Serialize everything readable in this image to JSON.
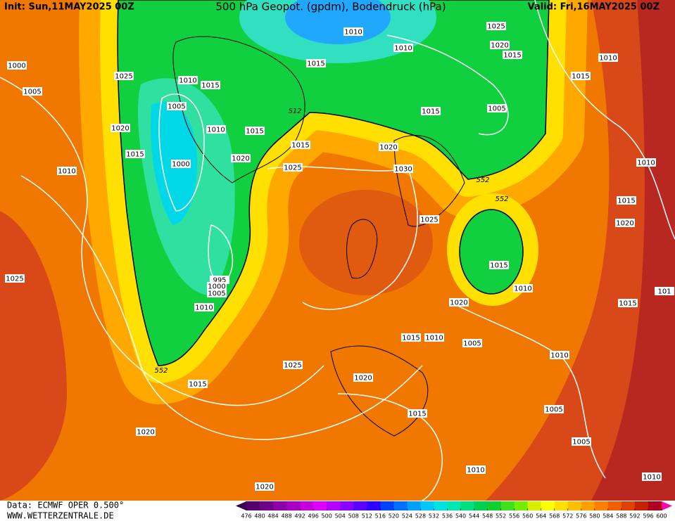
{
  "header": {
    "init": "Init: Sun,11MAY2025 00Z",
    "title": "500 hPa Geopot. (gpdm), Bodendruck (hPa)",
    "valid": "Valid: Fri,16MAY2025 00Z"
  },
  "map": {
    "isobar_labels": [
      "1010",
      "1025",
      "1020",
      "1015",
      "1010",
      "1010",
      "1000",
      "1025",
      "1010",
      "1015",
      "1015",
      "1015",
      "1005",
      "1005",
      "1015",
      "1005",
      "1020",
      "1010",
      "1015",
      "1015",
      "1020",
      "1015",
      "1020",
      "1000",
      "1025",
      "1030",
      "1010",
      "1010",
      "1015",
      "1025",
      "1020",
      "1015",
      "1025",
      "995",
      "1000",
      "1005",
      "1010",
      "1010",
      "1020",
      "1015",
      "101",
      "1015",
      "1010",
      "1005",
      "1010",
      "1025",
      "1020",
      "1015",
      "1005",
      "1015",
      "1020",
      "1005",
      "1010",
      "1010",
      "1020"
    ],
    "contour_labels": [
      "512",
      "552",
      "552",
      "552"
    ]
  },
  "colorbar": {
    "ticks": [
      476,
      480,
      484,
      488,
      492,
      496,
      500,
      504,
      508,
      512,
      516,
      520,
      524,
      528,
      532,
      536,
      540,
      544,
      548,
      552,
      556,
      560,
      564,
      568,
      572,
      576,
      580,
      584,
      588,
      592,
      596,
      600
    ],
    "colors": [
      "#3a0050",
      "#55006e",
      "#70008a",
      "#8c00a6",
      "#a800c2",
      "#c400de",
      "#e000ff",
      "#b400ff",
      "#8800ff",
      "#5c00ff",
      "#3000ff",
      "#0040ff",
      "#0070ff",
      "#00a0ff",
      "#00c8ff",
      "#00e0e0",
      "#00e8b0",
      "#00e080",
      "#00d050",
      "#10d030",
      "#40e020",
      "#70f000",
      "#d8f000",
      "#ffff00",
      "#ffe000",
      "#ffc000",
      "#ffa000",
      "#ff8000",
      "#f06000",
      "#e04000",
      "#c82000",
      "#b00020",
      "#ff00aa"
    ]
  },
  "footer": {
    "source": "Data: ECMWF OPER 0.500°",
    "site": "WWW.WETTERZENTRALE.DE"
  }
}
